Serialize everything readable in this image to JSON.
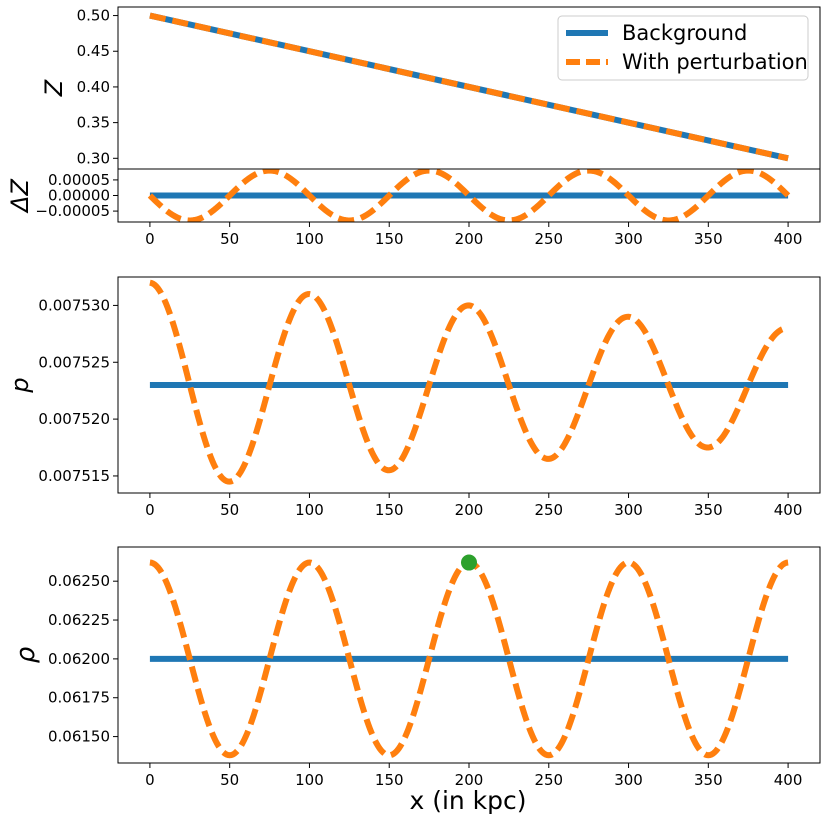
{
  "chart_data": [
    {
      "type": "line",
      "panel": "Z",
      "ylabel": "Z",
      "xlim": [
        -20,
        420
      ],
      "ylim": [
        0.285,
        0.512
      ],
      "yticks": [
        "0.50",
        "0.45",
        "0.40",
        "0.35",
        "0.30"
      ],
      "ytick_values": [
        0.5,
        0.45,
        0.4,
        0.35,
        0.3
      ],
      "grid": false,
      "legend": {
        "placement": "top-right",
        "entries": [
          "Background",
          "With perturbation"
        ]
      },
      "series": [
        {
          "name": "Background",
          "style": "solid",
          "color": "#1f77b4",
          "x": [
            0,
            400
          ],
          "y": [
            0.5,
            0.3
          ]
        },
        {
          "name": "With perturbation",
          "style": "dashed",
          "color": "#ff7f0e",
          "x": [
            0,
            400
          ],
          "y": [
            0.5,
            0.3
          ]
        }
      ]
    },
    {
      "type": "line",
      "panel": "deltaZ",
      "ylabel": "ΔZ",
      "xlim": [
        -20,
        420
      ],
      "ylim": [
        -8.5e-05,
        8.5e-05
      ],
      "yticks": [
        "0.00005",
        "0.00000",
        "−0.00005"
      ],
      "ytick_values": [
        5e-05,
        0,
        -5e-05
      ],
      "xticks": [
        0,
        50,
        100,
        150,
        200,
        250,
        300,
        350,
        400
      ],
      "grid": false,
      "series": [
        {
          "name": "Background",
          "style": "solid",
          "color": "#1f77b4",
          "constant": 0
        },
        {
          "name": "With perturbation",
          "style": "dashed",
          "color": "#ff7f0e",
          "function": "-A*sin(2*pi*x/100)",
          "amplitude": 8e-05,
          "period": 100
        }
      ]
    },
    {
      "type": "line",
      "panel": "p",
      "ylabel": "p",
      "xlim": [
        -20,
        420
      ],
      "ylim": [
        0.0075135,
        0.0075325
      ],
      "yticks": [
        "0.007530",
        "0.007525",
        "0.007520",
        "0.007515"
      ],
      "ytick_values": [
        0.00753,
        0.007525,
        0.00752,
        0.007515
      ],
      "xticks": [
        0,
        50,
        100,
        150,
        200,
        250,
        300,
        350,
        400
      ],
      "grid": false,
      "series": [
        {
          "name": "Background",
          "style": "solid",
          "color": "#1f77b4",
          "constant": 0.007523
        },
        {
          "name": "With perturbation",
          "style": "dashed",
          "color": "#ff7f0e",
          "function": "base + A*cos(2*pi*x/100)",
          "base": 0.007523,
          "amplitude_at_x0": 9e-06,
          "amplitude_at_x400": 5e-06,
          "period": 100
        }
      ]
    },
    {
      "type": "line",
      "panel": "rho",
      "ylabel": "ρ",
      "xlabel": "x (in kpc)",
      "xlim": [
        -20,
        420
      ],
      "ylim": [
        0.06133,
        0.06272
      ],
      "yticks": [
        "0.06250",
        "0.06225",
        "0.06200",
        "0.06175",
        "0.06150"
      ],
      "ytick_values": [
        0.0625,
        0.06225,
        0.062,
        0.06175,
        0.0615
      ],
      "xticks": [
        0,
        50,
        100,
        150,
        200,
        250,
        300,
        350,
        400
      ],
      "grid": false,
      "series": [
        {
          "name": "Background",
          "style": "solid",
          "color": "#1f77b4",
          "constant": 0.062
        },
        {
          "name": "With perturbation",
          "style": "dashed",
          "color": "#ff7f0e",
          "function": "base + A*cos(2*pi*x/100)",
          "base": 0.062,
          "amplitude": 0.00062,
          "period": 100
        }
      ],
      "marker": {
        "x": 200,
        "y": 0.06262,
        "color": "#2ca02c"
      }
    }
  ]
}
